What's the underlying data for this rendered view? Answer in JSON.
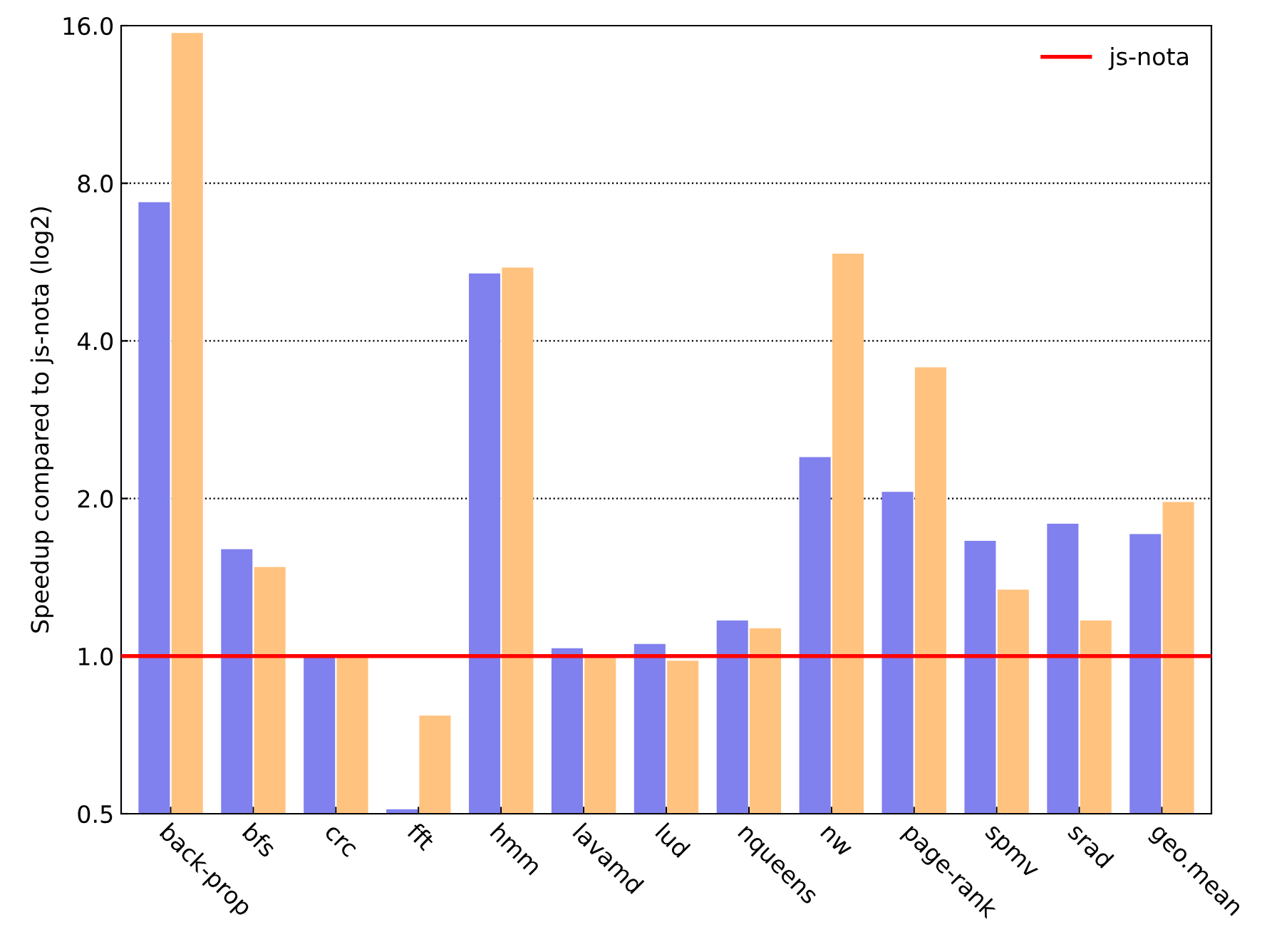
{
  "chart_data": {
    "type": "bar",
    "ylabel": "Speedup compared to js-nota (log2)",
    "categories": [
      "back-prop",
      "bfs",
      "crc",
      "fft",
      "hmm",
      "lavamd",
      "lud",
      "nqueens",
      "nw",
      "page-rank",
      "spmv",
      "srad",
      "geo.mean"
    ],
    "series": [
      {
        "color": "#8080ee",
        "values": [
          7.36,
          1.6,
          1.0,
          0.51,
          5.38,
          1.035,
          1.055,
          1.17,
          2.4,
          2.06,
          1.66,
          1.79,
          1.71
        ]
      },
      {
        "color": "#ffc27f",
        "values": [
          15.5,
          1.48,
          1.0,
          0.77,
          5.52,
          1.0,
          0.98,
          1.13,
          5.87,
          3.56,
          1.34,
          1.17,
          1.97
        ]
      }
    ],
    "log": true,
    "ylim": [
      0.5,
      16
    ],
    "yticks": [
      {
        "value": 0.5,
        "label": "0.5"
      },
      {
        "value": 1,
        "label": "1.0"
      },
      {
        "value": 2,
        "label": "2.0"
      },
      {
        "value": 4,
        "label": "4.0"
      },
      {
        "value": 8,
        "label": "8.0"
      },
      {
        "value": 16,
        "label": "16.0"
      }
    ],
    "ref_lines": [
      {
        "axis": "y",
        "value": 1,
        "label": "js-nota",
        "color": "#ff0000",
        "line_style": "solid"
      }
    ],
    "grid": "y",
    "legend": "top right"
  }
}
